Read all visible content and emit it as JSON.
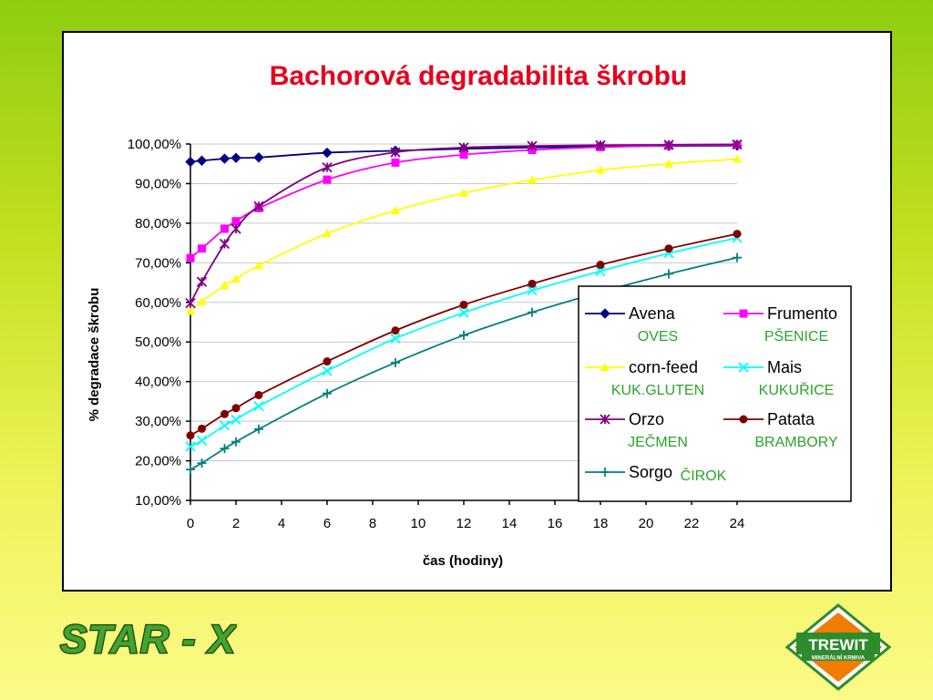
{
  "slide": {
    "logo_left": "STAR - X",
    "logo_right": {
      "main": "TREWIT",
      "sub": "MINERÁLNÍ KRMIVA"
    }
  },
  "chart_data": {
    "type": "line",
    "title": "Bachorová degradabilita škrobu",
    "xlabel": "čas (hodiny)",
    "ylabel": "%  degradace škrobu",
    "xlim": [
      0,
      24
    ],
    "ylim": [
      10,
      100
    ],
    "x_ticks": [
      "0",
      "2",
      "4",
      "6",
      "8",
      "10",
      "12",
      "14",
      "16",
      "18",
      "20",
      "22",
      "24"
    ],
    "y_ticks": [
      "10,00%",
      "20,00%",
      "30,00%",
      "40,00%",
      "50,00%",
      "60,00%",
      "70,00%",
      "80,00%",
      "90,00%",
      "100,00%"
    ],
    "grid": "horizontal",
    "legend_position": "bottom-right",
    "x": [
      0,
      0.5,
      1.5,
      2,
      3,
      6,
      9,
      12,
      15,
      18,
      21,
      24
    ],
    "series": [
      {
        "name": "Avena",
        "translation": "OVES",
        "color": "#000080",
        "marker": "diamond",
        "values": [
          95.5,
          95.8,
          96.3,
          96.5,
          96.6,
          97.8,
          98.3,
          98.8,
          99.1,
          99.4,
          99.5,
          99.6
        ]
      },
      {
        "name": "Frumento",
        "translation": "PŠENICE",
        "color": "#ff00ff",
        "marker": "square",
        "values": [
          71.2,
          73.6,
          78.6,
          80.5,
          83.8,
          91.0,
          95.3,
          97.3,
          98.5,
          99.2,
          99.6,
          99.8
        ]
      },
      {
        "name": "corn-feed",
        "translation": "KUK.GLUTEN",
        "color": "#ffff00",
        "marker": "triangle",
        "values": [
          57.8,
          60.2,
          64.3,
          65.9,
          69.3,
          77.4,
          83.2,
          87.6,
          90.9,
          93.4,
          95.0,
          96.2
        ]
      },
      {
        "name": "Mais",
        "translation": "KUKUŘICE",
        "color": "#00ffff",
        "marker": "x",
        "values": [
          23.6,
          25.1,
          28.9,
          30.4,
          33.8,
          42.7,
          50.9,
          57.4,
          63.0,
          67.9,
          72.4,
          76.3
        ]
      },
      {
        "name": "Orzo",
        "translation": "JEČMEN",
        "color": "#800080",
        "marker": "star",
        "values": [
          59.8,
          65.2,
          74.8,
          78.6,
          84.3,
          94.1,
          97.9,
          99.1,
          99.5,
          99.7,
          99.8,
          99.9
        ]
      },
      {
        "name": "Patata",
        "translation": "BRAMBORY",
        "color": "#800000",
        "marker": "circle",
        "values": [
          26.4,
          28.1,
          31.8,
          33.3,
          36.6,
          45.1,
          52.9,
          59.4,
          64.7,
          69.5,
          73.6,
          77.3
        ]
      },
      {
        "name": "Sorgo",
        "translation": "ČIROK",
        "color": "#008080",
        "marker": "plus",
        "values": [
          17.8,
          19.4,
          23.1,
          24.8,
          28.0,
          37.0,
          44.8,
          51.7,
          57.5,
          62.6,
          67.2,
          71.3
        ]
      }
    ]
  }
}
